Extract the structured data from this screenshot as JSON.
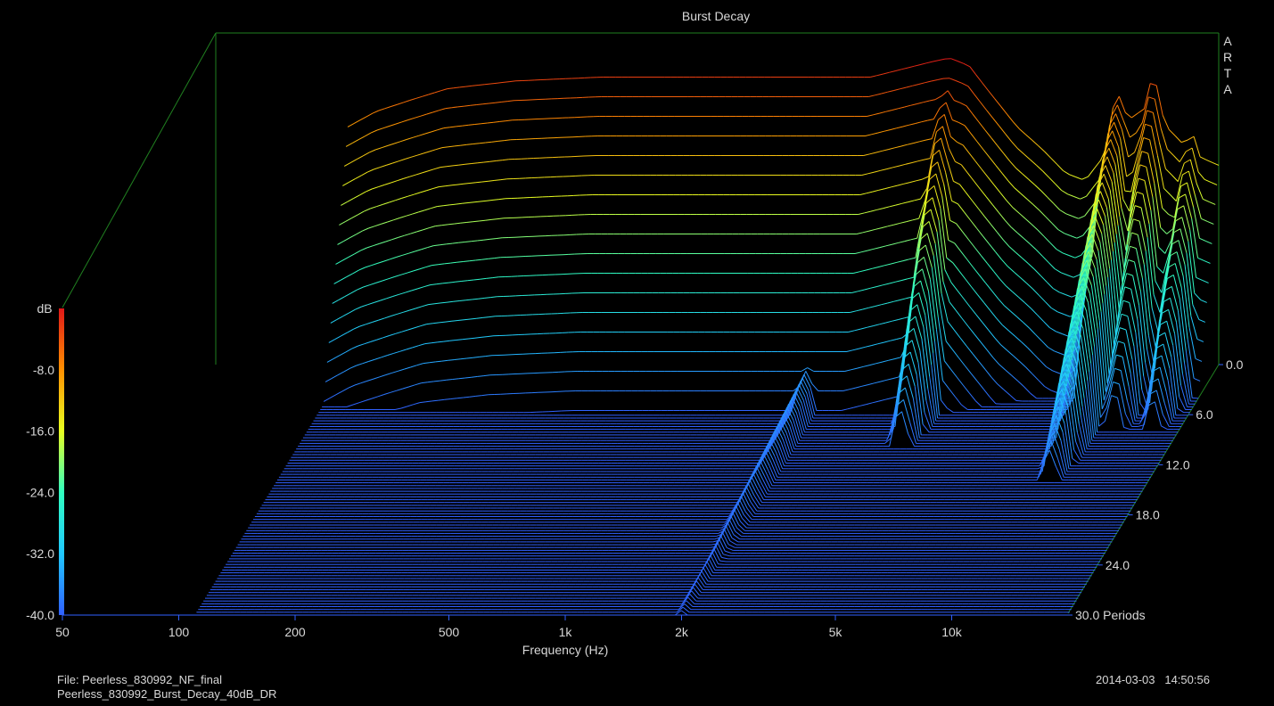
{
  "chart_data": {
    "type": "waterfall",
    "title": "Burst Decay",
    "watermark": "ARTA",
    "xlabel": "Frequency (Hz)",
    "xscale": "log",
    "xlim": [
      50,
      20000
    ],
    "x_ticks": [
      {
        "value": 50,
        "label": "50"
      },
      {
        "value": 100,
        "label": "100"
      },
      {
        "value": 200,
        "label": "200"
      },
      {
        "value": 500,
        "label": "500"
      },
      {
        "value": 1000,
        "label": "1k"
      },
      {
        "value": 2000,
        "label": "2k"
      },
      {
        "value": 5000,
        "label": "5k"
      },
      {
        "value": 10000,
        "label": "10k"
      }
    ],
    "zlabel": "dB",
    "zlim": [
      -40,
      0
    ],
    "z_ticks": [
      {
        "value": -8,
        "label": "-8.0"
      },
      {
        "value": -16,
        "label": "-16.0"
      },
      {
        "value": -24,
        "label": "-24.0"
      },
      {
        "value": -32,
        "label": "-32.0"
      },
      {
        "value": -40,
        "label": "-40.0"
      }
    ],
    "ylabel": "Periods",
    "ylim": [
      0,
      30
    ],
    "y_ticks": [
      {
        "value": 0,
        "label": "0.0"
      },
      {
        "value": 6,
        "label": "6.0"
      },
      {
        "value": 12,
        "label": "12.0"
      },
      {
        "value": 18,
        "label": "18.0"
      },
      {
        "value": 24,
        "label": "24.0"
      },
      {
        "value": 30,
        "label": "30.0 Periods"
      }
    ],
    "colormap": [
      "#3060ff",
      "#20c8ff",
      "#30ffc0",
      "#e8ff20",
      "#ff9000",
      "#e01818"
    ],
    "grid": false,
    "slice_count": 90,
    "response_at_0_periods": {
      "freq_hz": [
        110,
        130,
        160,
        200,
        300,
        500,
        800,
        1000,
        1200,
        1600,
        2000,
        2500,
        3000,
        3600,
        4000,
        4500,
        5000,
        6000,
        7000,
        8000,
        9000,
        10000,
        11000,
        12500,
        14000,
        16000,
        18000,
        20000
      ],
      "level_db": [
        -9,
        -7,
        -5.5,
        -4,
        -3,
        -2.5,
        -2.5,
        -2.5,
        -2.5,
        -2.5,
        -2.5,
        -2.5,
        -1.5,
        -0.5,
        0,
        -1,
        -4,
        -9,
        -12,
        -15,
        -16,
        -13,
        -9,
        -7,
        -8,
        -11,
        -13,
        -14
      ]
    },
    "decay_peaks": [
      {
        "freq_hz": 1750,
        "level_db": -6,
        "decay_periods": 5
      },
      {
        "freq_hz": 2000,
        "level_db": -34,
        "decay_periods": 30
      },
      {
        "freq_hz": 4000,
        "level_db": -1,
        "decay_periods": 10
      },
      {
        "freq_hz": 11000,
        "level_db": -5,
        "decay_periods": 14
      },
      {
        "freq_hz": 13500,
        "level_db": -3,
        "decay_periods": 8
      },
      {
        "freq_hz": 17000,
        "level_db": -10,
        "decay_periods": 8
      }
    ]
  },
  "footer": {
    "file": "File: Peerless_830992_NF_final",
    "name": "Peerless_830992_Burst_Decay_40dB_DR",
    "timestamp": "2014-03-03   14:50:56"
  },
  "colors": {
    "background": "#000000",
    "frame": "#208020",
    "text": "#d8d8d8"
  }
}
